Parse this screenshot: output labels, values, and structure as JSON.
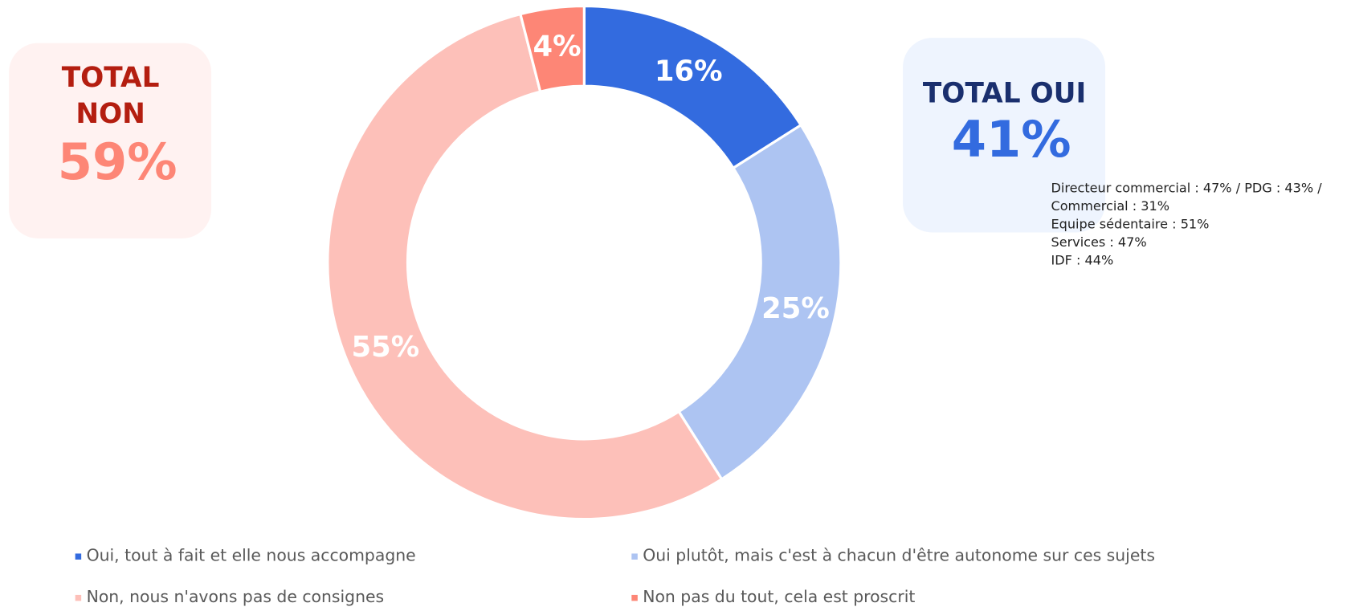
{
  "chart_data": {
    "type": "donut",
    "categories": [
      "Oui, tout à fait et elle nous accompagne",
      "Oui plutôt, mais c'est à chacun d'être autonome sur ces sujets",
      "Non, nous n'avons pas de consignes",
      "Non pas du tout, cela est proscrit"
    ],
    "values": [
      16,
      25,
      55,
      4
    ],
    "value_labels": [
      "16%",
      "25%",
      "55%",
      "4%"
    ],
    "colors": [
      "#336bdf",
      "#adc4f2",
      "#fdc0b9",
      "#fd8676"
    ],
    "annotations": {
      "total_non": {
        "lines": [
          "TOTAL",
          "NON"
        ],
        "value": "59%"
      },
      "total_oui": {
        "lines": [
          "TOTAL OUI"
        ],
        "value": "41%"
      },
      "notes": [
        "Directeur commercial : 47% / PDG : 43% /",
        "Commercial : 31%",
        "Equipe sédentaire : 51%",
        "Services : 47%",
        "IDF : 44%"
      ]
    }
  }
}
